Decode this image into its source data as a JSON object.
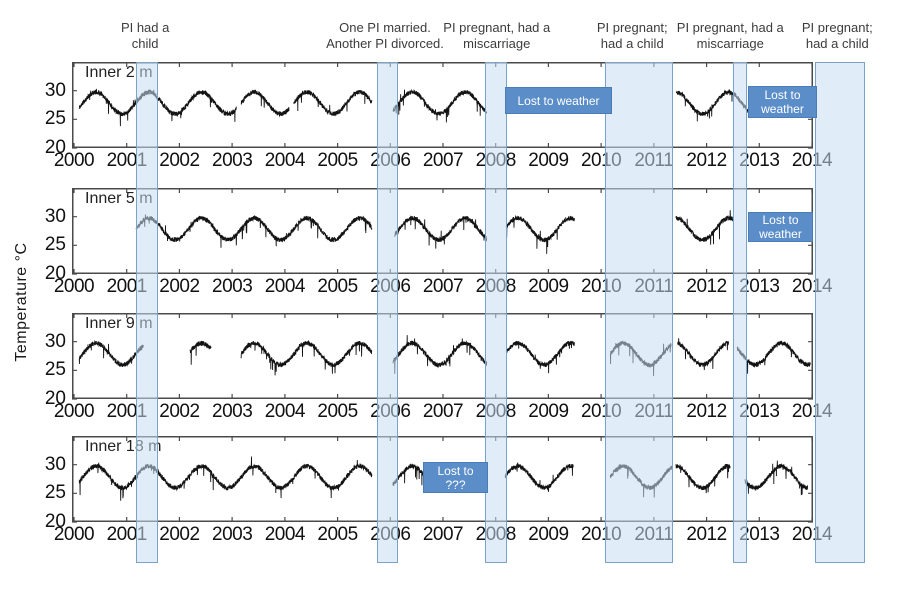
{
  "figure": {
    "y_axis_label": "Temperature °C"
  },
  "colors": {
    "background": "#ffffff",
    "band_fill": "rgba(199,221,240,0.55)",
    "band_border": "#7ba3c8",
    "lost_box_fill": "#5b8ec9",
    "lost_box_border": "#4a7db6",
    "lost_box_text": "#ffffff",
    "trace": "#131313",
    "axis": "#4a4a4a",
    "tick_label": "#111111",
    "annotation_text": "#3c3c3c"
  },
  "chart_data": {
    "type": "line",
    "title": "",
    "y_axis_label": "Temperature °C",
    "x_tick_labels": [
      "2000",
      "2001",
      "2002",
      "2003",
      "2004",
      "2005",
      "2006",
      "2007",
      "2008",
      "2009",
      "2010",
      "2011",
      "2012",
      "2013",
      "2014"
    ],
    "y_tick_labels": [
      "20",
      "25",
      "30"
    ],
    "x_range": [
      1999.96,
      2014.06
    ],
    "y_range": [
      20,
      35
    ],
    "grid": false,
    "legend": "none",
    "subplots": [
      {
        "title": "Inner 2 m",
        "segments_years": [
          [
            2000.1,
            2003.08
          ],
          [
            2003.17,
            2004.08
          ],
          [
            2004.17,
            2005.65
          ],
          [
            2006.05,
            2007.83
          ],
          [
            2011.42,
            2012.8
          ]
        ]
      },
      {
        "title": "Inner 5 m",
        "segments_years": [
          [
            2001.18,
            2005.65
          ],
          [
            2006.08,
            2007.83
          ],
          [
            2008.2,
            2009.5
          ],
          [
            2011.42,
            2012.5
          ]
        ]
      },
      {
        "title": "Inner 9 m",
        "segments_years": [
          [
            2000.1,
            2001.32
          ],
          [
            2002.2,
            2002.6
          ],
          [
            2003.17,
            2005.65
          ],
          [
            2006.05,
            2007.83
          ],
          [
            2008.2,
            2009.5
          ],
          [
            2010.17,
            2011.33
          ],
          [
            2011.45,
            2012.42
          ],
          [
            2012.58,
            2013.97
          ]
        ]
      },
      {
        "title": "Inner 18 m",
        "segments_years": [
          [
            2000.1,
            2005.65
          ],
          [
            2006.05,
            2006.62
          ],
          [
            2008.18,
            2009.47
          ],
          [
            2010.17,
            2011.35
          ],
          [
            2011.42,
            2012.45
          ],
          [
            2012.73,
            2013.92
          ]
        ]
      }
    ],
    "signal_model": {
      "description": "Seasonal water-temperature cycle, approx. 26-30 °C, annual maximum near mid-year (~29.8 °C), minimum near year boundary (~25.9 °C), with high-frequency noise and occasional sharp downward spikes to ~23.5 °C.",
      "mean": 27.85,
      "amplitude": 1.9,
      "sine_phase": 0.17,
      "seasonal_cycle_monthly": [
        26.1,
        26.6,
        27.6,
        28.7,
        29.5,
        29.8,
        29.5,
        28.8,
        27.9,
        27.0,
        26.2,
        25.9
      ],
      "noise_band": 0.8,
      "dip_prob": 0.02,
      "dip_max": 2.4,
      "spike_prob": 0.004,
      "spike_max": 1.6
    },
    "event_bands": [
      {
        "label": "PI had a child",
        "start_year": 2001.18,
        "end_year": 2001.59
      },
      {
        "label": "One PI married. Another PI divorced.",
        "start_year": 2005.75,
        "end_year": 2006.15
      },
      {
        "label": "PI pregnant, had a miscarriage",
        "start_year": 2007.8,
        "end_year": 2008.21
      },
      {
        "label": "PI pregnant; had a child",
        "start_year": 2010.07,
        "end_year": 2011.36
      },
      {
        "label": "PI pregnant, had a miscarriage",
        "start_year": 2012.5,
        "end_year": 2012.77
      },
      {
        "label": "PI pregnant; had a child",
        "start_year": 2014.06,
        "end_year": 2015.0
      }
    ],
    "annotations": [
      {
        "lines": [
          "PI had a",
          "child"
        ],
        "center_year": 2001.35
      },
      {
        "lines": [
          "One PI married.",
          "Another PI divorced."
        ],
        "center_year": 2005.9
      },
      {
        "lines": [
          "PI pregnant, had a",
          "miscarriage"
        ],
        "center_year": 2008.02
      },
      {
        "lines": [
          "PI pregnant;",
          "had a child"
        ],
        "center_year": 2010.59
      },
      {
        "lines": [
          "PI pregnant, had a",
          "miscarriage"
        ],
        "center_year": 2012.45
      },
      {
        "lines": [
          "PI pregnant;",
          "had a child"
        ],
        "center_year": 2014.48
      }
    ],
    "data_loss_boxes": [
      {
        "lines": [
          "Lost to weather"
        ],
        "subplot": 0,
        "start_year": 2008.18,
        "end_year": 2010.21,
        "top_temp": 30.6,
        "bottom_temp": 25.9
      },
      {
        "lines": [
          "Lost to",
          "weather"
        ],
        "subplot": 0,
        "start_year": 2012.79,
        "end_year": 2014.1,
        "top_temp": 30.8,
        "bottom_temp": 25.2
      },
      {
        "lines": [
          "Lost to",
          "weather"
        ],
        "subplot": 1,
        "start_year": 2012.79,
        "end_year": 2014.02,
        "top_temp": 30.8,
        "bottom_temp": 25.6
      },
      {
        "lines": [
          "Lost to",
          "???"
        ],
        "subplot": 3,
        "start_year": 2006.62,
        "end_year": 2007.85,
        "top_temp": 30.5,
        "bottom_temp": 25.1
      }
    ]
  }
}
